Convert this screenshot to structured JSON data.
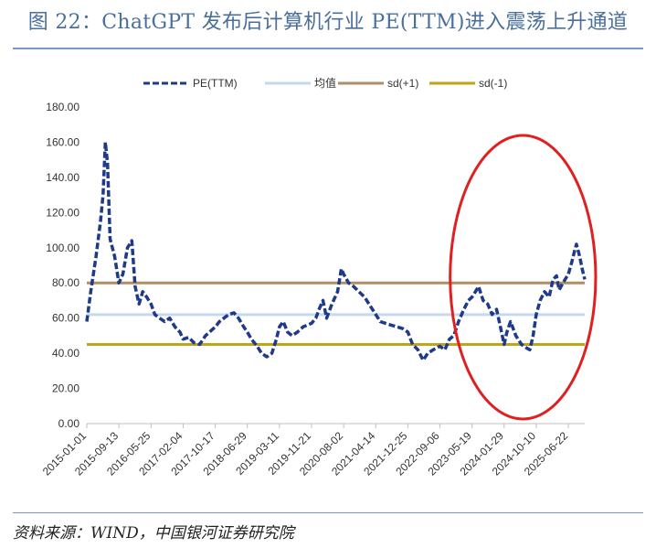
{
  "header": {
    "title": "图 22：ChatGPT 发布后计算机行业 PE(TTM)进入震荡上升通道"
  },
  "footer": {
    "source": "资料来源：WIND，中国银河证券研究院"
  },
  "colors": {
    "title": "#4a6f9b",
    "pe": "#1f3a8a",
    "mean": "#c5d9ee",
    "sd_plus": "#b08d62",
    "sd_minus": "#c2a516",
    "ellipse": "#e02020"
  },
  "chart_data": {
    "type": "line",
    "title": "",
    "xlabel": "",
    "ylabel": "",
    "ylim": [
      0,
      180
    ],
    "yticks": [
      "0.00",
      "20.00",
      "40.00",
      "60.00",
      "80.00",
      "100.00",
      "120.00",
      "140.00",
      "160.00",
      "180.00"
    ],
    "xticks": [
      "2015-01-01",
      "2015-09-13",
      "2016-05-25",
      "2017-02-04",
      "2017-10-17",
      "2018-06-29",
      "2019-03-11",
      "2019-11-21",
      "2020-08-02",
      "2021-04-14",
      "2021-12-25",
      "2022-09-06",
      "2023-05-19",
      "2024-01-29",
      "2024-10-10",
      "2025-06-22"
    ],
    "legend_position": "top",
    "legend": [
      "PE(TTM)",
      "均值",
      "sd(+1)",
      "sd(-1)"
    ],
    "grid": false,
    "series": [
      {
        "name": "PE(TTM)",
        "style": "dashed",
        "points": [
          [
            "2015-01-01",
            58
          ],
          [
            "2015-02-01",
            75
          ],
          [
            "2015-03-15",
            95
          ],
          [
            "2015-04-20",
            115
          ],
          [
            "2015-05-10",
            130
          ],
          [
            "2015-05-28",
            160
          ],
          [
            "2015-06-15",
            148
          ],
          [
            "2015-07-05",
            105
          ],
          [
            "2015-08-10",
            95
          ],
          [
            "2015-09-13",
            80
          ],
          [
            "2015-10-15",
            85
          ],
          [
            "2015-11-20",
            100
          ],
          [
            "2015-12-25",
            104
          ],
          [
            "2016-01-20",
            78
          ],
          [
            "2016-02-20",
            68
          ],
          [
            "2016-03-20",
            75
          ],
          [
            "2016-04-20",
            72
          ],
          [
            "2016-05-25",
            68
          ],
          [
            "2016-06-25",
            62
          ],
          [
            "2016-08-01",
            60
          ],
          [
            "2016-09-10",
            58
          ],
          [
            "2016-10-20",
            60
          ],
          [
            "2016-12-01",
            55
          ],
          [
            "2017-01-10",
            52
          ],
          [
            "2017-02-04",
            48
          ],
          [
            "2017-03-20",
            49
          ],
          [
            "2017-05-01",
            46
          ],
          [
            "2017-06-15",
            45
          ],
          [
            "2017-08-01",
            50
          ],
          [
            "2017-10-17",
            55
          ],
          [
            "2017-11-20",
            58
          ],
          [
            "2017-12-25",
            60
          ],
          [
            "2018-02-01",
            62
          ],
          [
            "2018-03-15",
            63
          ],
          [
            "2018-04-20",
            60
          ],
          [
            "2018-06-01",
            55
          ],
          [
            "2018-06-29",
            52
          ],
          [
            "2018-08-01",
            48
          ],
          [
            "2018-09-15",
            44
          ],
          [
            "2018-10-20",
            40
          ],
          [
            "2018-12-01",
            38
          ],
          [
            "2019-01-10",
            40
          ],
          [
            "2019-02-15",
            48
          ],
          [
            "2019-03-11",
            55
          ],
          [
            "2019-04-10",
            58
          ],
          [
            "2019-05-15",
            52
          ],
          [
            "2019-06-20",
            50
          ],
          [
            "2019-08-01",
            52
          ],
          [
            "2019-09-15",
            55
          ],
          [
            "2019-11-21",
            57
          ],
          [
            "2019-12-25",
            60
          ],
          [
            "2020-01-20",
            65
          ],
          [
            "2020-02-20",
            70
          ],
          [
            "2020-03-20",
            60
          ],
          [
            "2020-05-01",
            68
          ],
          [
            "2020-06-15",
            75
          ],
          [
            "2020-07-15",
            88
          ],
          [
            "2020-08-02",
            85
          ],
          [
            "2020-09-10",
            80
          ],
          [
            "2020-10-20",
            78
          ],
          [
            "2020-12-01",
            75
          ],
          [
            "2021-01-15",
            72
          ],
          [
            "2021-02-20",
            68
          ],
          [
            "2021-04-14",
            62
          ],
          [
            "2021-05-20",
            58
          ],
          [
            "2021-07-01",
            57
          ],
          [
            "2021-08-15",
            56
          ],
          [
            "2021-10-01",
            55
          ],
          [
            "2021-11-15",
            54
          ],
          [
            "2021-12-25",
            52
          ],
          [
            "2022-02-01",
            45
          ],
          [
            "2022-03-15",
            42
          ],
          [
            "2022-04-25",
            36
          ],
          [
            "2022-06-01",
            40
          ],
          [
            "2022-07-15",
            42
          ],
          [
            "2022-09-06",
            44
          ],
          [
            "2022-10-15",
            42
          ],
          [
            "2022-11-20",
            48
          ],
          [
            "2022-12-25",
            50
          ],
          [
            "2023-02-01",
            58
          ],
          [
            "2023-03-15",
            65
          ],
          [
            "2023-04-20",
            70
          ],
          [
            "2023-05-19",
            72
          ],
          [
            "2023-06-15",
            75
          ],
          [
            "2023-07-10",
            78
          ],
          [
            "2023-08-15",
            70
          ],
          [
            "2023-09-20",
            68
          ],
          [
            "2023-10-25",
            62
          ],
          [
            "2023-11-30",
            65
          ],
          [
            "2023-12-30",
            55
          ],
          [
            "2024-01-29",
            45
          ],
          [
            "2024-02-20",
            52
          ],
          [
            "2024-03-20",
            58
          ],
          [
            "2024-05-01",
            50
          ],
          [
            "2024-06-15",
            45
          ],
          [
            "2024-07-25",
            43
          ],
          [
            "2024-08-20",
            42
          ],
          [
            "2024-09-15",
            50
          ],
          [
            "2024-10-10",
            62
          ],
          [
            "2024-11-10",
            70
          ],
          [
            "2024-12-15",
            75
          ],
          [
            "2025-01-20",
            72
          ],
          [
            "2025-02-20",
            82
          ],
          [
            "2025-03-20",
            84
          ],
          [
            "2025-04-10",
            76
          ],
          [
            "2025-05-10",
            80
          ],
          [
            "2025-06-22",
            85
          ],
          [
            "2025-07-20",
            92
          ],
          [
            "2025-08-10",
            98
          ],
          [
            "2025-08-25",
            102
          ],
          [
            "2025-09-20",
            95
          ],
          [
            "2025-10-10",
            88
          ],
          [
            "2025-10-30",
            82
          ]
        ]
      },
      {
        "name": "均值",
        "value": 62
      },
      {
        "name": "sd(+1)",
        "value": 80
      },
      {
        "name": "sd(-1)",
        "value": 45
      }
    ],
    "annotation": {
      "shape": "ellipse",
      "color": "red",
      "x_range": [
        "2022-12-25",
        "2025-10-30"
      ]
    }
  }
}
